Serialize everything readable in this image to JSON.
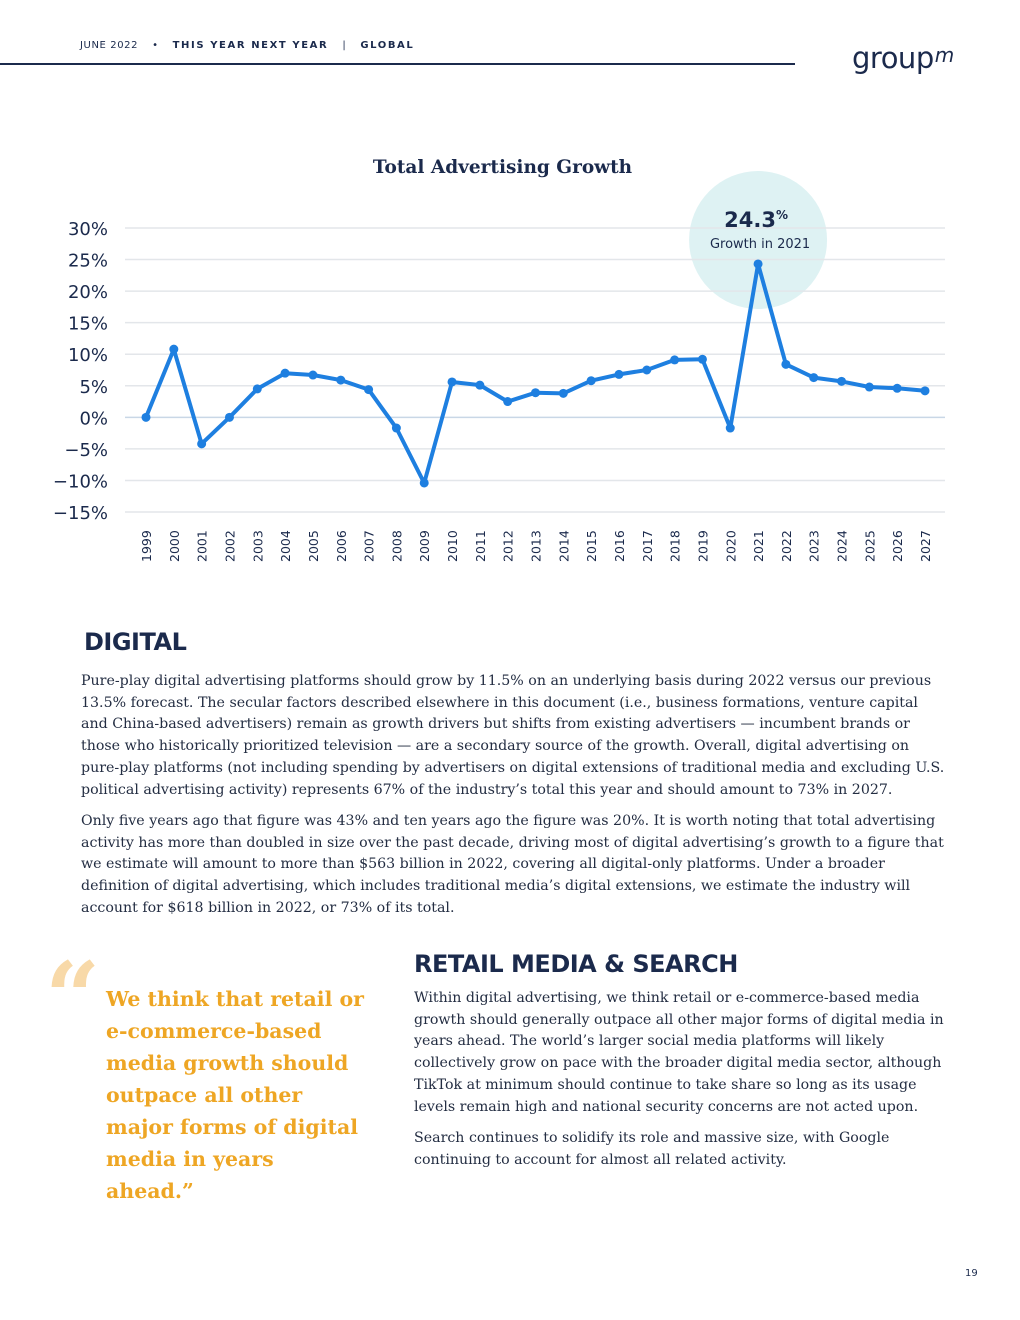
{
  "header": {
    "date": "JUNE 2022",
    "separator": "•",
    "report": "THIS YEAR NEXT YEAR",
    "divider": "|",
    "region": "GLOBAL",
    "logo_text": "group",
    "logo_mark": "m"
  },
  "chart_data": {
    "type": "line",
    "title": "Total Advertising Growth",
    "xlabel": "",
    "ylabel": "",
    "categories": [
      "1999",
      "2000",
      "2001",
      "2002",
      "2003",
      "2004",
      "2005",
      "2006",
      "2007",
      "2008",
      "2009",
      "2010",
      "2011",
      "2012",
      "2013",
      "2014",
      "2015",
      "2016",
      "2017",
      "2018",
      "2019",
      "2020",
      "2021",
      "2022",
      "2023",
      "2024",
      "2025",
      "2026",
      "2027"
    ],
    "series": [
      {
        "values": [
          0.0,
          10.8,
          -4.2,
          0.0,
          4.5,
          7.0,
          6.7,
          5.9,
          4.4,
          -1.7,
          -10.4,
          5.6,
          5.1,
          2.5,
          3.9,
          3.8,
          5.8,
          6.8,
          7.5,
          9.1,
          9.2,
          -1.7,
          24.3,
          8.4,
          6.3,
          5.7,
          4.8,
          4.6,
          4.2
        ]
      }
    ],
    "ylim": [
      -15,
      30
    ],
    "yticks": [
      30,
      25,
      20,
      15,
      10,
      5,
      0,
      -5,
      -10,
      -15
    ],
    "ytick_labels": [
      "30%",
      "25%",
      "20%",
      "15%",
      "10%",
      "5%",
      "0%",
      "−5%",
      "−10%",
      "−15%"
    ],
    "grid": true,
    "line_color": "#1e7fe0",
    "callout": {
      "category": "2021",
      "value_text": "24.3",
      "value_unit": "%",
      "label": "Growth in 2021",
      "bubble_color": "#def2f3"
    }
  },
  "digital": {
    "heading": "DIGITAL",
    "paragraphs": [
      "Pure-play digital advertising platforms should grow by 11.5% on an underlying basis during 2022 versus our previous 13.5% forecast. The secular factors described elsewhere in this document (i.e., business formations, venture capital and China-based advertisers) remain as growth drivers but shifts from existing advertisers — incumbent brands or those who historically prioritized television — are a secondary source of the growth. Overall, digital advertising on pure-play platforms (not including spending by advertisers on digital extensions of traditional media and excluding U.S. political advertising activity) represents 67% of the industry’s total this year and should amount to 73% in 2027.",
      "Only five years ago that figure was 43% and ten years ago the figure was 20%. It is worth noting that total advertising activity has more than doubled in size over the past decade, driving most of digital advertising’s growth to a figure that we estimate will amount to more than $563 billion in 2022, covering all digital-only platforms. Under a broader definition of digital advertising, which includes traditional media’s digital extensions, we estimate the industry will account for $618 billion in 2022, or 73% of its total."
    ]
  },
  "quote": {
    "mark": "“",
    "text": "We think that retail or e-commerce-based media growth should outpace all other major forms of digital media in years ahead.”"
  },
  "retail": {
    "heading": "RETAIL MEDIA & SEARCH",
    "paragraphs": [
      "Within digital advertising, we think retail or e-commerce-based media growth should generally outpace all other major forms of digital media in years ahead. The world’s larger social media platforms will likely collectively grow on pace with the broader digital media sector, although TikTok at minimum should continue to take share so long as its usage levels remain high and national security concerns are not acted upon.",
      "Search continues to solidify its role and massive size, with Google continuing to account for almost all related activity."
    ]
  },
  "page_number": "19"
}
